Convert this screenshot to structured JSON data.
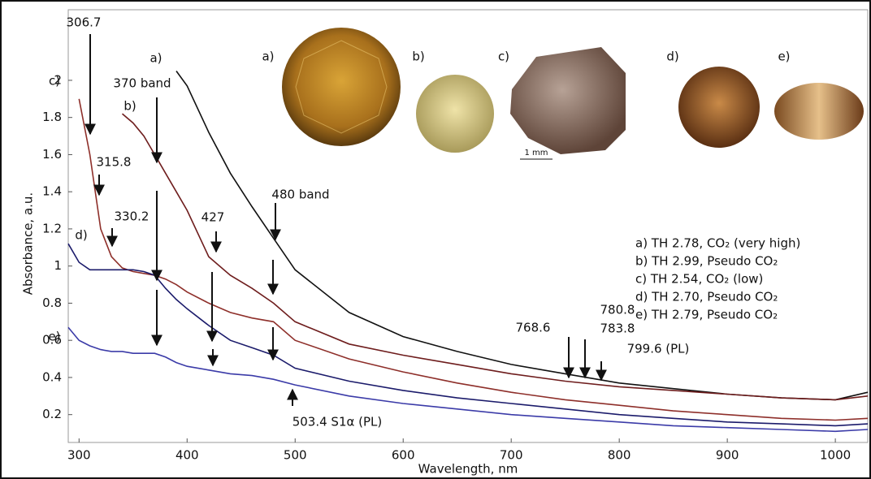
{
  "chart_data": {
    "type": "line",
    "xlabel": "Wavelength, nm",
    "ylabel": "Absorbance, a.u.",
    "x": [
      290,
      300,
      310,
      320,
      330,
      340,
      350,
      360,
      370,
      380,
      390,
      400,
      420,
      440,
      460,
      480,
      500,
      550,
      600,
      650,
      700,
      750,
      800,
      850,
      900,
      950,
      1000,
      1030
    ],
    "series": [
      {
        "name": "a) TH 2.78, CO₂ (very high)",
        "color": "#111111",
        "values": [
          null,
          null,
          null,
          null,
          null,
          null,
          null,
          null,
          null,
          null,
          2.05,
          1.97,
          1.72,
          1.5,
          1.32,
          1.15,
          0.98,
          0.75,
          0.62,
          0.54,
          0.47,
          0.42,
          0.37,
          0.34,
          0.31,
          0.29,
          0.28,
          0.32
        ]
      },
      {
        "name": "b) TH 2.99, Pseudo CO₂",
        "color": "#6e1d1d",
        "values": [
          null,
          null,
          null,
          null,
          null,
          1.82,
          1.77,
          1.7,
          1.6,
          1.5,
          1.4,
          1.3,
          1.05,
          0.95,
          0.88,
          0.8,
          0.7,
          0.58,
          0.52,
          0.47,
          0.42,
          0.38,
          0.35,
          0.33,
          0.31,
          0.29,
          0.28,
          0.3
        ]
      },
      {
        "name": "c) TH 2.54, CO₂ (low)",
        "color": "#8e2f2a",
        "values": [
          null,
          1.9,
          1.6,
          1.2,
          1.05,
          0.99,
          0.97,
          0.96,
          0.95,
          0.93,
          0.9,
          0.86,
          0.8,
          0.75,
          0.72,
          0.7,
          0.6,
          0.5,
          0.43,
          0.37,
          0.32,
          0.28,
          0.25,
          0.22,
          0.2,
          0.18,
          0.17,
          0.18
        ]
      },
      {
        "name": "d) TH 2.70, Pseudo CO₂",
        "color": "#1b1b6b",
        "values": [
          1.12,
          1.02,
          0.98,
          0.98,
          0.98,
          0.98,
          0.98,
          0.97,
          0.95,
          0.88,
          0.82,
          0.77,
          0.68,
          0.6,
          0.56,
          0.52,
          0.45,
          0.38,
          0.33,
          0.29,
          0.26,
          0.23,
          0.2,
          0.18,
          0.16,
          0.15,
          0.14,
          0.15
        ]
      },
      {
        "name": "e) TH 2.79, Pseudo CO₂",
        "color": "#3b3ba8",
        "values": [
          0.67,
          0.6,
          0.57,
          0.55,
          0.54,
          0.54,
          0.53,
          0.53,
          0.53,
          0.51,
          0.48,
          0.46,
          0.44,
          0.42,
          0.41,
          0.39,
          0.36,
          0.3,
          0.26,
          0.23,
          0.2,
          0.18,
          0.16,
          0.14,
          0.13,
          0.12,
          0.11,
          0.12
        ]
      }
    ],
    "xlim": [
      290,
      1030
    ],
    "ylim": [
      0.05,
      2.38
    ],
    "xticks": [
      300,
      400,
      500,
      600,
      700,
      800,
      900,
      1000
    ],
    "yticks": [
      0.2,
      0.4,
      0.6,
      0.8,
      1,
      1.2,
      1.4,
      1.6,
      1.8,
      2
    ],
    "curve_labels": [
      "a)",
      "b)",
      "c)",
      "d)",
      "e)"
    ],
    "annotations": [
      "306.7",
      "370 band",
      "315.8",
      "330.2",
      "427",
      "480 band",
      "768.6",
      "780.8",
      "783.8",
      "799.6 (PL)",
      "503.4 S1α (PL)"
    ],
    "photo_labels": [
      "a)",
      "b)",
      "c)",
      "d)",
      "e)"
    ],
    "scale_label": "1 mm"
  }
}
